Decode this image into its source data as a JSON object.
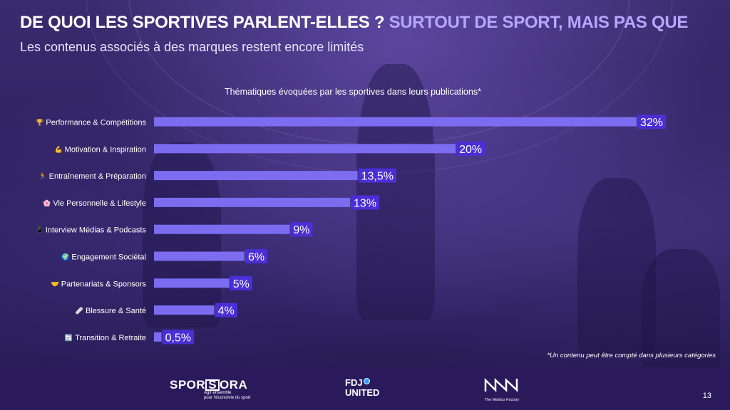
{
  "header": {
    "title_part1": "DE QUOI LES SPORTIVES PARLENT-ELLES ?",
    "title_part2": "SURTOUT DE SPORT, MAIS PAS QUE",
    "subtitle": "Les contenus associés à des marques restent encore limités"
  },
  "colors": {
    "bar": "#7b6cf0",
    "label_box": "#4a2fd6",
    "title_accent": "#b7a6ff",
    "background": "#2e2160",
    "footer": "#2a1a5c"
  },
  "chart_data": {
    "type": "bar",
    "orientation": "horizontal",
    "title": "Thématiques évoquées par les sportives dans leurs publications*",
    "categories": [
      {
        "icon": "trophy-icon",
        "emoji": "🏆",
        "label": "Performance & Compétitions"
      },
      {
        "icon": "flexed-biceps-icon",
        "emoji": "💪",
        "label": "Motivation & Inspiration"
      },
      {
        "icon": "running-person-icon",
        "emoji": "🏃",
        "label": "Entraînement & Préparation"
      },
      {
        "icon": "flower-icon",
        "emoji": "🌸",
        "label": "Vie Personnelle & Lifestyle"
      },
      {
        "icon": "phone-icon",
        "emoji": "📱",
        "label": "Interview Médias & Podcasts"
      },
      {
        "icon": "globe-icon",
        "emoji": "🌍",
        "label": "Engagement Sociétal"
      },
      {
        "icon": "handshake-icon",
        "emoji": "🤝",
        "label": "Partenariats & Sponsors"
      },
      {
        "icon": "bandage-icon",
        "emoji": "🩹",
        "label": "Blessure & Santé"
      },
      {
        "icon": "cycle-arrows-icon",
        "emoji": "🔄",
        "label": "Transition & Retraite"
      }
    ],
    "values": [
      32,
      20,
      13.5,
      13,
      9,
      6,
      5,
      4,
      0.5
    ],
    "value_labels": [
      "32%",
      "20%",
      "13,5%",
      "13%",
      "9%",
      "6%",
      "5%",
      "4%",
      "0,5%"
    ],
    "unit": "%",
    "xlim": [
      0,
      32
    ],
    "grid": false,
    "legend": "none"
  },
  "footnote": "*Un contenu peut être compté dans plusieurs catégories",
  "footer": {
    "sporsora_name_1": "SPOR",
    "sporsora_name_box": "S",
    "sporsora_name_2": "ORA",
    "sporsora_tagline_1": "Agir ensemble",
    "sporsora_tagline_2": "pour l'économie du sport",
    "fdj_line1": "FDJ",
    "fdj_line2": "UNITED",
    "tmf_tagline": "The Metrics Factory",
    "page_number": "13"
  }
}
